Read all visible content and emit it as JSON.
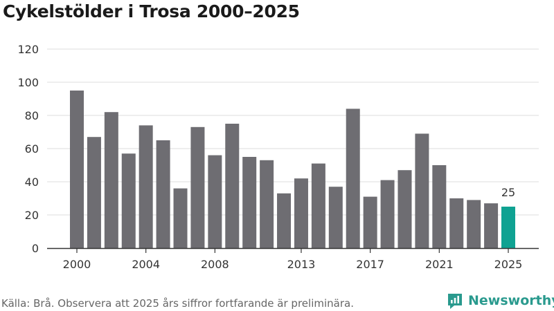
{
  "title": "Cykelstölder i Trosa 2000–2025",
  "source": "Källa: Brå. Observera att 2025 års siffror fortfarande är preliminära.",
  "brand": {
    "name": "Newsworthy",
    "icon": "newsworthy-logo-icon"
  },
  "colors": {
    "bar": "#6e6d72",
    "highlight": "#0fa292",
    "grid": "#dddddd",
    "axis": "#333333",
    "brand": "#2a9a8e"
  },
  "chart_data": {
    "type": "bar",
    "title": "Cykelstölder i Trosa 2000–2025",
    "xlabel": "",
    "ylabel": "",
    "categories": [
      "2000",
      "2001",
      "2002",
      "2003",
      "2004",
      "2005",
      "2006",
      "2007",
      "2008",
      "2009",
      "2010",
      "2011",
      "2012",
      "2013",
      "2014",
      "2015",
      "2016",
      "2017",
      "2018",
      "2019",
      "2020",
      "2021",
      "2022",
      "2023",
      "2024",
      "2025"
    ],
    "values": [
      95,
      67,
      82,
      57,
      74,
      65,
      36,
      73,
      56,
      75,
      55,
      53,
      33,
      42,
      51,
      37,
      84,
      31,
      41,
      47,
      69,
      50,
      30,
      29,
      27,
      25
    ],
    "ylim": [
      0,
      120
    ],
    "yticks": [
      0,
      20,
      40,
      60,
      80,
      100,
      120
    ],
    "xtick_labels": [
      "2000",
      "2004",
      "2008",
      "2013",
      "2017",
      "2021",
      "2025"
    ],
    "highlight": {
      "category": "2025",
      "label": "25"
    },
    "grid": true
  }
}
